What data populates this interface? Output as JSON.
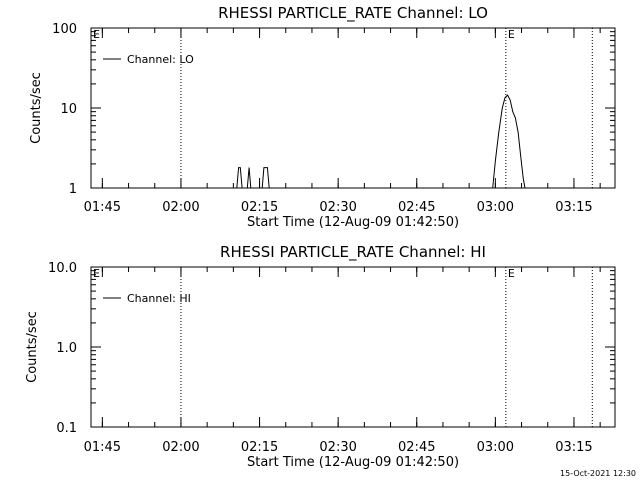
{
  "chart_data": [
    {
      "type": "line",
      "title": "RHESSI PARTICLE_RATE Channel: LO",
      "xlabel": "Start Time (12-Aug-09 01:42:50)",
      "ylabel": "Counts/sec",
      "yscale": "log",
      "ylim": [
        1,
        100
      ],
      "y_tick_labels": [
        "1",
        "10",
        "100"
      ],
      "y_tick_values": [
        1,
        10,
        100
      ],
      "xlim": [
        "01:42:50",
        "03:22:50"
      ],
      "x_tick_labels": [
        "01:45",
        "02:00",
        "02:15",
        "02:30",
        "02:45",
        "03:00",
        "03:15"
      ],
      "legend": {
        "position": "top-left",
        "entries": [
          "Channel: LO"
        ]
      },
      "markers": [
        {
          "x": "02:00:00",
          "label": ""
        },
        {
          "x": "03:02:00",
          "label": "E"
        },
        {
          "x": "03:18:30",
          "label": ""
        }
      ],
      "corner_label": "E",
      "series": [
        {
          "name": "Channel: LO",
          "segments": [
            {
              "x": [
                "02:10:40",
                "02:11:00",
                "02:11:20",
                "02:11:40"
              ],
              "y": [
                1,
                1.8,
                1.8,
                1
              ]
            },
            {
              "x": [
                "02:12:40",
                "02:13:00",
                "02:13:20"
              ],
              "y": [
                1,
                1.8,
                1
              ]
            },
            {
              "x": [
                "02:15:30",
                "02:15:50",
                "02:16:30",
                "02:16:50"
              ],
              "y": [
                1,
                1.8,
                1.8,
                1
              ]
            },
            {
              "x": [
                "02:59:30",
                "03:00:00",
                "03:00:40",
                "03:01:20",
                "03:01:50",
                "03:02:20",
                "03:02:50",
                "03:03:20",
                "03:03:50",
                "03:04:20",
                "03:04:50",
                "03:05:20",
                "03:05:40"
              ],
              "y": [
                1,
                2.2,
                5,
                10,
                13.5,
                14.5,
                12.5,
                9,
                7.5,
                5,
                2.5,
                1.3,
                1
              ]
            }
          ]
        }
      ]
    },
    {
      "type": "line",
      "title": "RHESSI PARTICLE_RATE Channel: HI",
      "xlabel": "Start Time (12-Aug-09 01:42:50)",
      "ylabel": "Counts/sec",
      "yscale": "log",
      "ylim": [
        0.1,
        10
      ],
      "y_tick_labels": [
        "0.1",
        "1.0",
        "10.0"
      ],
      "y_tick_values": [
        0.1,
        1,
        10
      ],
      "xlim": [
        "01:42:50",
        "03:22:50"
      ],
      "x_tick_labels": [
        "01:45",
        "02:00",
        "02:15",
        "02:30",
        "02:45",
        "03:00",
        "03:15"
      ],
      "legend": {
        "position": "top-left",
        "entries": [
          "Channel: HI"
        ]
      },
      "markers": [
        {
          "x": "02:00:00",
          "label": ""
        },
        {
          "x": "03:02:00",
          "label": "E"
        },
        {
          "x": "03:18:30",
          "label": ""
        }
      ],
      "corner_label": "E",
      "series": [
        {
          "name": "Channel: HI",
          "segments": []
        }
      ]
    }
  ],
  "footer": {
    "timestamp": "15-Oct-2021 12:30"
  }
}
